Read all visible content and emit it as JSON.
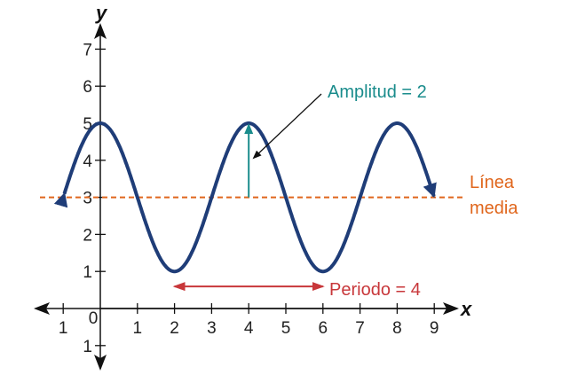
{
  "chart_data": {
    "type": "line",
    "function": "y = 2cos(πx/2) + 3",
    "xlabel": "x",
    "ylabel": "y",
    "xlim": [
      -1,
      9
    ],
    "ylim": [
      -1,
      7
    ],
    "x_ticks": [
      {
        "value": -1,
        "label": "1"
      },
      {
        "value": 0,
        "label": "0"
      },
      {
        "value": 1,
        "label": "1"
      },
      {
        "value": 2,
        "label": "2"
      },
      {
        "value": 3,
        "label": "3"
      },
      {
        "value": 4,
        "label": "4"
      },
      {
        "value": 5,
        "label": "5"
      },
      {
        "value": 6,
        "label": "6"
      },
      {
        "value": 7,
        "label": "7"
      },
      {
        "value": 8,
        "label": "8"
      },
      {
        "value": 9,
        "label": "9"
      }
    ],
    "y_ticks": [
      {
        "value": -1,
        "label": "1"
      },
      {
        "value": 1,
        "label": "1"
      },
      {
        "value": 2,
        "label": "2"
      },
      {
        "value": 3,
        "label": "3"
      },
      {
        "value": 4,
        "label": "4"
      },
      {
        "value": 5,
        "label": "5"
      },
      {
        "value": 6,
        "label": "6"
      },
      {
        "value": 7,
        "label": "7"
      }
    ],
    "curve": {
      "amplitude": 2,
      "period": 4,
      "midline": 3,
      "x_range": [
        -0.97,
        9
      ],
      "color": "#1f3d78"
    },
    "midline": {
      "y": 3,
      "label_line1": "Línea",
      "label_line2": "media",
      "color": "#e0661c"
    },
    "amplitude_annotation": {
      "x": 4,
      "from_y": 3,
      "to_y": 5,
      "label": "Amplitud = 2",
      "color": "#1a8c8c"
    },
    "period_annotation": {
      "from_x": 2,
      "to_x": 6,
      "y": 0.5,
      "label": "Periodo = 4",
      "color": "#c8373a"
    },
    "grid": false,
    "legend": "none"
  }
}
